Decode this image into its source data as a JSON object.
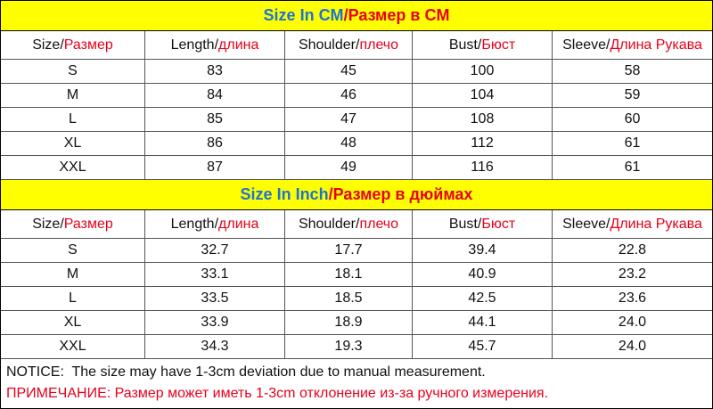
{
  "tables": [
    {
      "title": {
        "en": "Size In CM",
        "ru": "/Размер в CM"
      },
      "headers": [
        {
          "en": "Size/",
          "ru": "Размер"
        },
        {
          "en": "Length/",
          "ru": "длина"
        },
        {
          "en": "Shoulder/",
          "ru": "плечо"
        },
        {
          "en": "Bust/",
          "ru": "Бюст"
        },
        {
          "en": "Sleeve/",
          "ru": "Длина Рукава"
        }
      ],
      "rows": [
        [
          "S",
          "83",
          "45",
          "100",
          "58"
        ],
        [
          "M",
          "84",
          "46",
          "104",
          "59"
        ],
        [
          "L",
          "85",
          "47",
          "108",
          "60"
        ],
        [
          "XL",
          "86",
          "48",
          "112",
          "61"
        ],
        [
          "XXL",
          "87",
          "49",
          "116",
          "61"
        ]
      ]
    },
    {
      "title": {
        "en": "Size In Inch",
        "ru": "/Размер в дюймах"
      },
      "headers": [
        {
          "en": "Size/",
          "ru": "Размер"
        },
        {
          "en": "Length/",
          "ru": "длина"
        },
        {
          "en": "Shoulder/",
          "ru": "плечо"
        },
        {
          "en": "Bust/",
          "ru": "Бюст"
        },
        {
          "en": "Sleeve/",
          "ru": "Длина Рукава"
        }
      ],
      "rows": [
        [
          "S",
          "32.7",
          "17.7",
          "39.4",
          "22.8"
        ],
        [
          "M",
          "33.1",
          "18.1",
          "40.9",
          "23.2"
        ],
        [
          "L",
          "33.5",
          "18.5",
          "42.5",
          "23.6"
        ],
        [
          "XL",
          "33.9",
          "18.9",
          "44.1",
          "24.0"
        ],
        [
          "XXL",
          "34.3",
          "19.3",
          "45.7",
          "24.0"
        ]
      ]
    }
  ],
  "notice": {
    "en": "NOTICE:  The size may have 1-3cm deviation due to manual measurement.",
    "ru": "ПРИМЕЧАНИЕ: Размер может иметь 1-3cm отклонение из-за ручного измерения."
  }
}
